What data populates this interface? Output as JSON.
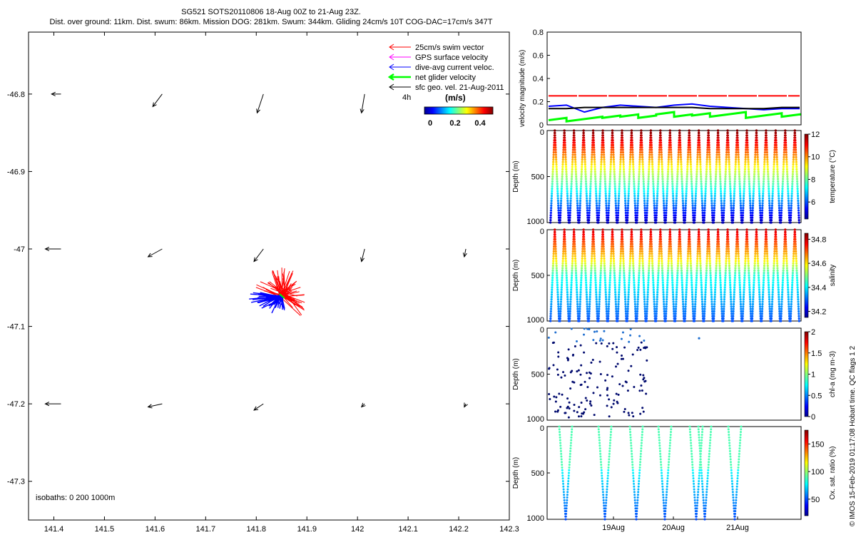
{
  "header": {
    "line1": "SG521 SOTS20110806 18-Aug 00Z to 21-Aug 23Z.",
    "line2": "Dist. over ground: 11km. Dist. swum: 86km. Mission DOG: 281km. Swum: 344km. Gliding 24cm/s 10T COG-DAC=17cm/s 347T"
  },
  "map": {
    "x_ticks": [
      "141.4",
      "141.5",
      "141.6",
      "141.7",
      "141.8",
      "141.9",
      "142",
      "142.1",
      "142.2",
      "142.3"
    ],
    "y_ticks": [
      "-46.8",
      "-46.9",
      "-47",
      "-47.1",
      "-47.2",
      "-47.3"
    ],
    "legend": [
      {
        "label": "25cm/s swim vector",
        "color": "#ff0000"
      },
      {
        "label": "GPS surface velocity",
        "color": "#ff00ff"
      },
      {
        "label": "dive-avg current veloc.",
        "color": "#0000ff"
      },
      {
        "label": "net glider velocity",
        "color": "#00ff00"
      },
      {
        "label": "sfc geo. vel. 21-Aug-2011",
        "color": "#000000"
      }
    ],
    "scale_label": "4h",
    "colorbar_title": "(m/s)",
    "colorbar_ticks": [
      "0",
      "0.2",
      "0.4"
    ],
    "isobaths_label": "isobaths: 0   200  1000m"
  },
  "vel_panel": {
    "ylabel": "velocity magnitude (m/s)",
    "y_ticks": [
      "0",
      "0.2",
      "0.4",
      "0.6",
      "0.8"
    ],
    "ylim": [
      0,
      0.8
    ]
  },
  "depth_panels": [
    {
      "ylabel": "Depth (m)",
      "y_ticks": [
        "0",
        "500",
        "1000"
      ],
      "cbar_label": "temperature (°C)",
      "cbar_ticks": [
        "12",
        "10",
        "8",
        "6"
      ]
    },
    {
      "ylabel": "Depth (m)",
      "y_ticks": [
        "0",
        "500",
        "1000"
      ],
      "cbar_label": "salinity",
      "cbar_ticks": [
        "34.8",
        "34.6",
        "34.4",
        "34.2"
      ]
    },
    {
      "ylabel": "Depth (m)",
      "y_ticks": [
        "0",
        "500",
        "1000"
      ],
      "cbar_label": "chl-a (mg m-3)",
      "cbar_ticks": [
        "2",
        "1.5",
        "1",
        "0.5",
        "0"
      ]
    },
    {
      "ylabel": "Depth (m)",
      "y_ticks": [
        "0",
        "500",
        "1000"
      ],
      "cbar_label": "Ox. sat. ratio (%)",
      "cbar_ticks": [
        "150",
        "100",
        "50"
      ]
    }
  ],
  "time_ticks": [
    "19Aug",
    "20Aug",
    "21Aug"
  ],
  "footer_vertical": "© IMOS 15-Feb-2019 01:17:08 Hobart time. QC flags 1  2",
  "chart_data": [
    {
      "type": "scatter",
      "title": "SG521 SOTS20110806 18-Aug 00Z to 21-Aug 23Z.",
      "xlabel": "",
      "ylabel": "",
      "xlim": [
        141.35,
        142.3
      ],
      "ylim": [
        -47.35,
        -46.72
      ],
      "grid": false,
      "legend_placement": "top-right",
      "glider_cluster_center": [
        141.85,
        -47.06
      ],
      "geostrophic_vectors": [
        {
          "lon": 141.4,
          "lat": -46.8,
          "u": -0.06,
          "v": 0.0
        },
        {
          "lon": 141.6,
          "lat": -46.8,
          "u": -0.06,
          "v": -0.08
        },
        {
          "lon": 141.8,
          "lat": -46.8,
          "u": -0.04,
          "v": -0.12
        },
        {
          "lon": 142.0,
          "lat": -46.8,
          "u": -0.02,
          "v": -0.12
        },
        {
          "lon": 141.4,
          "lat": -47.0,
          "u": -0.1,
          "v": 0.0
        },
        {
          "lon": 141.6,
          "lat": -47.0,
          "u": -0.09,
          "v": -0.05
        },
        {
          "lon": 141.8,
          "lat": -47.0,
          "u": -0.06,
          "v": -0.08
        },
        {
          "lon": 142.0,
          "lat": -47.0,
          "u": -0.02,
          "v": -0.08
        },
        {
          "lon": 142.2,
          "lat": -47.0,
          "u": -0.01,
          "v": -0.05
        },
        {
          "lon": 141.4,
          "lat": -47.2,
          "u": -0.1,
          "v": 0.0
        },
        {
          "lon": 141.6,
          "lat": -47.2,
          "u": -0.09,
          "v": -0.02
        },
        {
          "lon": 141.8,
          "lat": -47.2,
          "u": -0.06,
          "v": -0.04
        },
        {
          "lon": 142.0,
          "lat": -47.2,
          "u": -0.02,
          "v": -0.02
        },
        {
          "lon": 142.2,
          "lat": -47.2,
          "u": -0.01,
          "v": -0.02
        }
      ]
    },
    {
      "type": "line",
      "ylabel": "velocity magnitude (m/s)",
      "ylim": [
        0,
        0.8
      ],
      "x_range": [
        "18Aug",
        "22Aug"
      ],
      "series": [
        {
          "color": "#ff0000",
          "values": [
            0.25,
            0.25
          ]
        },
        {
          "color": "#0000ff",
          "values": [
            0.16,
            0.17,
            0.11,
            0.15,
            0.17,
            0.16,
            0.15,
            0.17,
            0.18,
            0.16,
            0.15,
            0.14,
            0.13,
            0.14,
            0.14
          ]
        },
        {
          "color": "#000000",
          "values": [
            0.14,
            0.14,
            0.15,
            0.15,
            0.15,
            0.15,
            0.15,
            0.15,
            0.15,
            0.14,
            0.14,
            0.14,
            0.14,
            0.15,
            0.15
          ]
        },
        {
          "color": "#00ff00",
          "values": [
            0.04,
            0.03,
            0.05,
            0.06,
            0.07,
            0.06,
            0.09,
            0.07,
            0.08,
            0.07,
            0.09,
            0.06,
            0.08,
            0.07,
            0.08
          ]
        }
      ]
    },
    {
      "type": "scatter",
      "ylabel": "Depth (m)",
      "ylim": [
        1000,
        0
      ],
      "colorbar": "temperature (°C)",
      "clim": [
        4.5,
        12
      ],
      "dive_count": 26
    },
    {
      "type": "scatter",
      "ylabel": "Depth (m)",
      "ylim": [
        1000,
        0
      ],
      "colorbar": "salinity",
      "clim": [
        34.15,
        34.85
      ],
      "dive_count": 26
    },
    {
      "type": "scatter",
      "ylabel": "Depth (m)",
      "ylim": [
        1000,
        0
      ],
      "colorbar": "chl-a (mg m-3)",
      "clim": [
        0,
        2
      ]
    },
    {
      "type": "scatter",
      "ylabel": "Depth (m)",
      "ylim": [
        1000,
        0
      ],
      "colorbar": "Ox. sat. ratio (%)",
      "clim": [
        20,
        175
      ],
      "dive_count": 8
    }
  ]
}
